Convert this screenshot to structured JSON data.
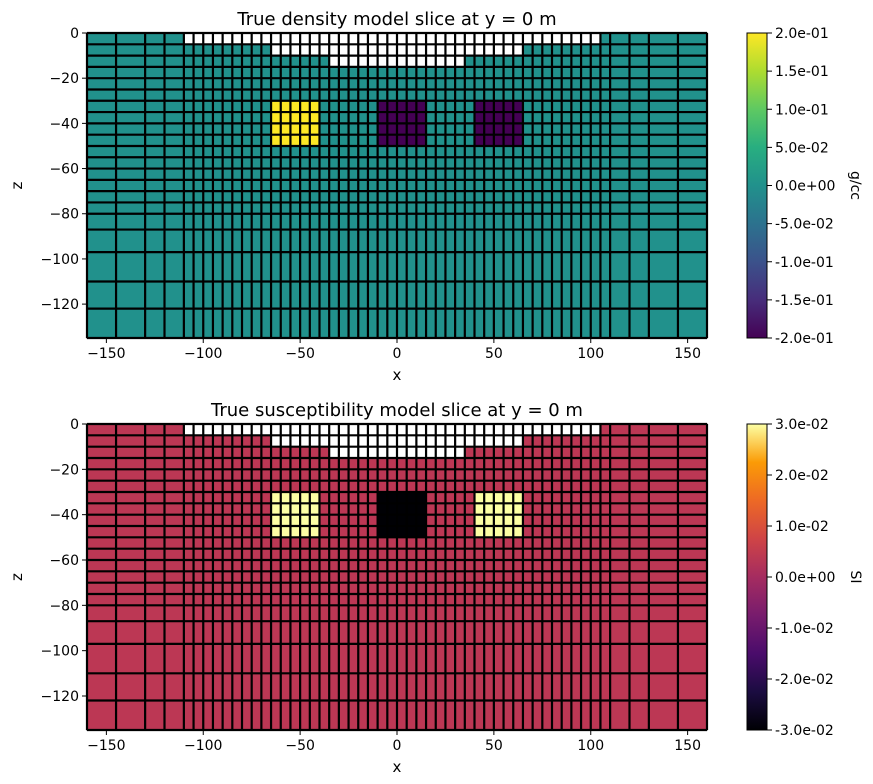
{
  "chart_data": [
    {
      "type": "heatmap",
      "title": "True density model slice at y = 0 m",
      "xlabel": "x",
      "ylabel": "z",
      "xlim": [
        -160,
        160
      ],
      "ylim": [
        -135,
        0
      ],
      "x_ticks": [
        -150,
        -100,
        -50,
        0,
        50,
        100,
        150
      ],
      "x_tick_labels": [
        "−150",
        "−100",
        "−50",
        "0",
        "50",
        "100",
        "150"
      ],
      "y_ticks": [
        0,
        -20,
        -40,
        -60,
        -80,
        -100,
        -120
      ],
      "y_tick_labels": [
        "0",
        "−20",
        "−40",
        "−60",
        "−80",
        "−100",
        "−120"
      ],
      "colormap": "viridis",
      "colorbar_label": "g/cc",
      "colorbar_range": [
        -0.2,
        0.2
      ],
      "colorbar_ticks": [
        0.2,
        0.15,
        0.1,
        0.05,
        0.0,
        -0.05,
        -0.1,
        -0.15,
        -0.2
      ],
      "colorbar_tick_labels": [
        "2.0e-01",
        "1.5e-01",
        "1.0e-01",
        "5.0e-02",
        "0.0e+00",
        "-5.0e-02",
        "-1.0e-01",
        "-1.5e-01",
        "-2.0e-01"
      ],
      "background_value": 0.0,
      "background_color": "#21918c",
      "anomalies": [
        {
          "name": "block-left",
          "x_range": [
            -65,
            -40
          ],
          "z_range": [
            -50,
            -30
          ],
          "value": 0.2,
          "color": "#fde725"
        },
        {
          "name": "block-center",
          "x_range": [
            -10,
            15
          ],
          "z_range": [
            -50,
            -30
          ],
          "value": -0.2,
          "color": "#440154"
        },
        {
          "name": "block-right",
          "x_range": [
            40,
            65
          ],
          "z_range": [
            -50,
            -30
          ],
          "value": -0.2,
          "color": "#440154"
        }
      ],
      "inactive_cells_note": "white cells above topography"
    },
    {
      "type": "heatmap",
      "title": "True susceptibility model slice at y = 0 m",
      "xlabel": "x",
      "ylabel": "z",
      "xlim": [
        -160,
        160
      ],
      "ylim": [
        -135,
        0
      ],
      "x_ticks": [
        -150,
        -100,
        -50,
        0,
        50,
        100,
        150
      ],
      "x_tick_labels": [
        "−150",
        "−100",
        "−50",
        "0",
        "50",
        "100",
        "150"
      ],
      "y_ticks": [
        0,
        -20,
        -40,
        -60,
        -80,
        -100,
        -120
      ],
      "y_tick_labels": [
        "0",
        "−20",
        "−40",
        "−60",
        "−80",
        "−100",
        "−120"
      ],
      "colormap": "inferno",
      "colorbar_label": "SI",
      "colorbar_range": [
        -0.03,
        0.03
      ],
      "colorbar_ticks": [
        0.03,
        0.02,
        0.01,
        0.0,
        -0.01,
        -0.02,
        -0.03
      ],
      "colorbar_tick_labels": [
        "3.0e-02",
        "2.0e-02",
        "1.0e-02",
        "0.0e+00",
        "-1.0e-02",
        "-2.0e-02",
        "-3.0e-02"
      ],
      "background_value": 0.0,
      "background_color": "#bc3754",
      "anomalies": [
        {
          "name": "block-left",
          "x_range": [
            -65,
            -40
          ],
          "z_range": [
            -50,
            -30
          ],
          "value": 0.03,
          "color": "#fcffa4"
        },
        {
          "name": "block-center",
          "x_range": [
            -10,
            15
          ],
          "z_range": [
            -50,
            -30
          ],
          "value": -0.03,
          "color": "#000004"
        },
        {
          "name": "block-right",
          "x_range": [
            40,
            65
          ],
          "z_range": [
            -50,
            -30
          ],
          "value": 0.03,
          "color": "#fcffa4"
        }
      ],
      "inactive_cells_note": "white cells above topography"
    }
  ]
}
